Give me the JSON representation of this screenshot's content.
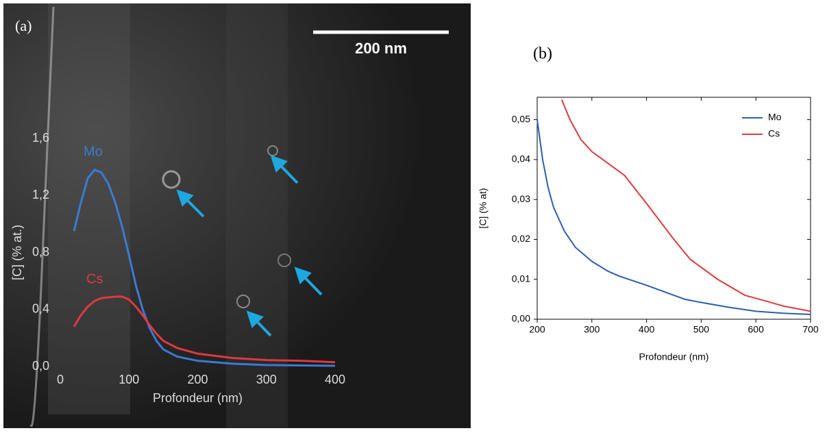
{
  "chart_data": [
    {
      "type": "line",
      "label": "(a)",
      "scale_bar": "200 nm",
      "x_label": "Profondeur (nm)",
      "y_label": "[C] (% at.)",
      "xlim": [
        0,
        400
      ],
      "ylim": [
        0,
        1.6
      ],
      "xticks": [
        0,
        100,
        200,
        300,
        400
      ],
      "yticks": [
        {
          "value": 0,
          "label": "0,0"
        },
        {
          "value": 0.4,
          "label": "0,4"
        },
        {
          "value": 0.8,
          "label": "0,8"
        },
        {
          "value": 1.2,
          "label": "1,2"
        },
        {
          "value": 1.6,
          "label": "1,6"
        }
      ],
      "legend": "inline",
      "series": [
        {
          "name": "Mo",
          "color": "#3a7bd5",
          "x": [
            20,
            30,
            40,
            50,
            60,
            70,
            80,
            90,
            100,
            110,
            120,
            130,
            140,
            150,
            170,
            200,
            250,
            300,
            400
          ],
          "values": [
            0.95,
            1.15,
            1.32,
            1.38,
            1.36,
            1.28,
            1.15,
            0.98,
            0.78,
            0.57,
            0.4,
            0.27,
            0.18,
            0.12,
            0.07,
            0.04,
            0.02,
            0.01,
            0.005
          ]
        },
        {
          "name": "Cs",
          "color": "#e0393e",
          "x": [
            20,
            30,
            40,
            50,
            60,
            80,
            90,
            100,
            110,
            120,
            130,
            140,
            150,
            170,
            200,
            250,
            300,
            350,
            400
          ],
          "values": [
            0.28,
            0.36,
            0.42,
            0.46,
            0.48,
            0.49,
            0.49,
            0.47,
            0.42,
            0.36,
            0.29,
            0.23,
            0.18,
            0.13,
            0.09,
            0.06,
            0.045,
            0.04,
            0.03
          ]
        }
      ]
    },
    {
      "type": "line",
      "label": "(b)",
      "x_label": "Profondeur (nm)",
      "y_label": "[C] (% at)",
      "xlim": [
        200,
        700
      ],
      "ylim": [
        0,
        0.0556
      ],
      "xticks": [
        200,
        300,
        400,
        500,
        600,
        700
      ],
      "yticks": [
        {
          "value": 0,
          "label": "0,00"
        },
        {
          "value": 0.01,
          "label": "0,01"
        },
        {
          "value": 0.02,
          "label": "0,02"
        },
        {
          "value": 0.03,
          "label": "0,03"
        },
        {
          "value": 0.04,
          "label": "0,04"
        },
        {
          "value": 0.05,
          "label": "0,05"
        }
      ],
      "legend": "upper right",
      "series": [
        {
          "name": "Mo",
          "color": "#2a5db0",
          "x": [
            200,
            210,
            220,
            230,
            250,
            270,
            300,
            330,
            350,
            400,
            450,
            470,
            500,
            550,
            600,
            650,
            700
          ],
          "values": [
            0.05,
            0.04,
            0.033,
            0.028,
            0.022,
            0.018,
            0.0145,
            0.012,
            0.0108,
            0.0085,
            0.006,
            0.005,
            0.0042,
            0.003,
            0.002,
            0.0015,
            0.0012
          ]
        },
        {
          "name": "Cs",
          "color": "#e0393e",
          "x": [
            245,
            260,
            280,
            300,
            330,
            360,
            400,
            450,
            480,
            530,
            580,
            620,
            650,
            700
          ],
          "values": [
            0.055,
            0.05,
            0.045,
            0.042,
            0.039,
            0.036,
            0.029,
            0.02,
            0.015,
            0.01,
            0.006,
            0.0045,
            0.0033,
            0.002
          ]
        }
      ]
    }
  ]
}
